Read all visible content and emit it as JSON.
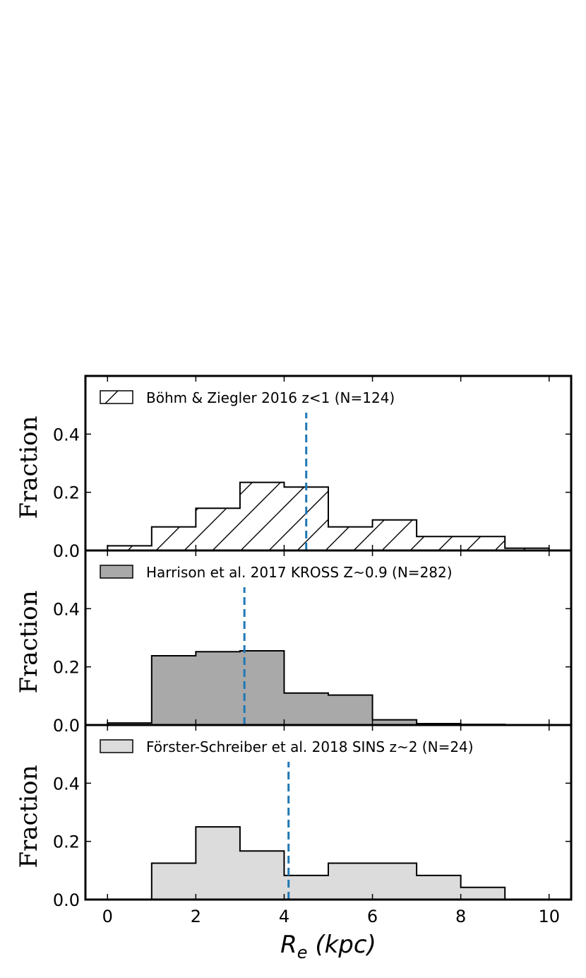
{
  "chart_data": {
    "type": "histogram",
    "xlabel": "R",
    "xlabel_sub": "e",
    "xlabel_units": "(kpc)",
    "xlim": [
      -0.5,
      10.5
    ],
    "x_ticks": [
      "0",
      "2",
      "4",
      "6",
      "8",
      "10"
    ],
    "x_tick_values": [
      0,
      2,
      4,
      6,
      8,
      10
    ],
    "bin_edges": [
      0,
      1,
      2,
      3,
      4,
      5,
      6,
      7,
      8,
      9,
      10
    ],
    "panels": [
      {
        "ylabel": "Fraction",
        "ylim": [
          0,
          0.6
        ],
        "y_ticks": [
          "0.0",
          "0.2",
          "0.4"
        ],
        "y_tick_values": [
          0,
          0.2,
          0.4
        ],
        "legend": "Böhm & Ziegler 2016 z<1 (N=124)",
        "style": "hatch",
        "fill": "#ffffff",
        "values": [
          0.016,
          0.081,
          0.145,
          0.234,
          0.218,
          0.081,
          0.105,
          0.048,
          0.048,
          0.008
        ],
        "median": 4.5,
        "median_color": "#1f77b4"
      },
      {
        "ylabel": "Fraction",
        "ylim": [
          0,
          0.6
        ],
        "y_ticks": [
          "0.0",
          "0.2",
          "0.4"
        ],
        "y_tick_values": [
          0,
          0.2,
          0.4
        ],
        "legend": "Harrison et al. 2017 KROSS Z~0.9 (N=282)",
        "style": "solid",
        "fill": "#a9a9a9",
        "values": [
          0.007,
          0.238,
          0.252,
          0.255,
          0.11,
          0.103,
          0.018,
          0.005,
          0.002,
          0.0
        ],
        "median": 3.1,
        "median_color": "#1f77b4"
      },
      {
        "ylabel": "Fraction",
        "ylim": [
          0,
          0.6
        ],
        "y_ticks": [
          "0.0",
          "0.2",
          "0.4"
        ],
        "y_tick_values": [
          0,
          0.2,
          0.4
        ],
        "legend": "Förster-Schreiber et al. 2018 SINS z~2 (N=24)",
        "style": "solid",
        "fill": "#dcdcdc",
        "values": [
          0.0,
          0.125,
          0.25,
          0.167,
          0.083,
          0.125,
          0.125,
          0.083,
          0.042,
          0.0
        ],
        "median": 4.1,
        "median_color": "#1f77b4"
      }
    ]
  }
}
